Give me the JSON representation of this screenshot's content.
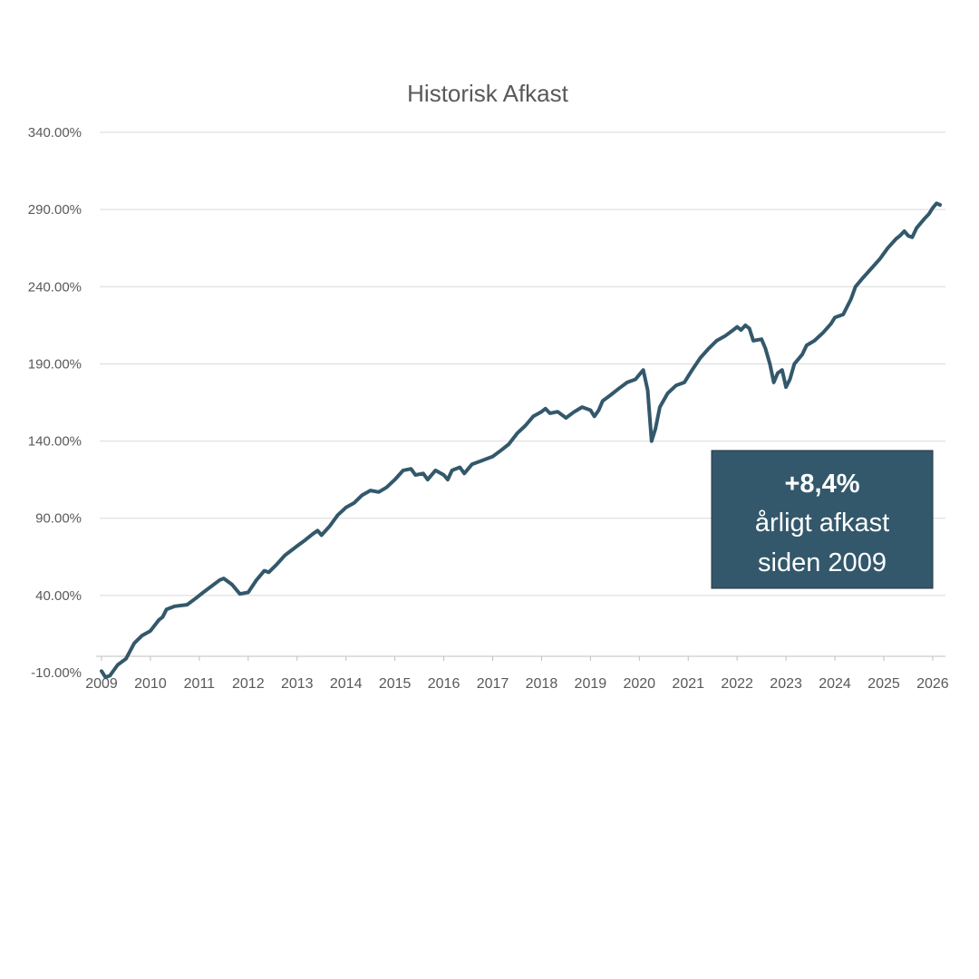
{
  "chart_data": {
    "type": "line",
    "title": "Historisk Afkast",
    "xlabel": "",
    "ylabel": "",
    "x_ticks": [
      "2009",
      "2010",
      "2011",
      "2012",
      "2013",
      "2014",
      "2015",
      "2016",
      "2017",
      "2018",
      "2019",
      "2020",
      "2021",
      "2022",
      "2023",
      "2024",
      "2025",
      "2026"
    ],
    "y_ticks": [
      "340.00%",
      "290.00%",
      "240.00%",
      "190.00%",
      "140.00%",
      "90.00%",
      "40.00%",
      "-10.00%"
    ],
    "y_tick_values": [
      340,
      290,
      240,
      190,
      140,
      90,
      40,
      -10
    ],
    "xlim": [
      2009.0,
      2026.15
    ],
    "ylim": [
      -10,
      340
    ],
    "grid": true,
    "series": [
      {
        "color": "#33586b",
        "points": [
          [
            2009.0,
            -9
          ],
          [
            2009.08,
            -13
          ],
          [
            2009.17,
            -12
          ],
          [
            2009.33,
            -5
          ],
          [
            2009.5,
            -1
          ],
          [
            2009.67,
            9
          ],
          [
            2009.83,
            14
          ],
          [
            2010.0,
            17
          ],
          [
            2010.17,
            24
          ],
          [
            2010.25,
            26
          ],
          [
            2010.33,
            31
          ],
          [
            2010.5,
            33
          ],
          [
            2010.75,
            34
          ],
          [
            2010.92,
            38
          ],
          [
            2011.08,
            42
          ],
          [
            2011.25,
            46
          ],
          [
            2011.42,
            50
          ],
          [
            2011.5,
            51
          ],
          [
            2011.67,
            47
          ],
          [
            2011.83,
            41
          ],
          [
            2012.0,
            42
          ],
          [
            2012.17,
            50
          ],
          [
            2012.33,
            56
          ],
          [
            2012.42,
            55
          ],
          [
            2012.58,
            60
          ],
          [
            2012.75,
            66
          ],
          [
            2013.0,
            72
          ],
          [
            2013.17,
            76
          ],
          [
            2013.33,
            80
          ],
          [
            2013.42,
            82
          ],
          [
            2013.5,
            79
          ],
          [
            2013.67,
            85
          ],
          [
            2013.83,
            92
          ],
          [
            2014.0,
            97
          ],
          [
            2014.17,
            100
          ],
          [
            2014.33,
            105
          ],
          [
            2014.5,
            108
          ],
          [
            2014.67,
            107
          ],
          [
            2014.83,
            110
          ],
          [
            2015.0,
            115
          ],
          [
            2015.17,
            121
          ],
          [
            2015.33,
            122
          ],
          [
            2015.42,
            118
          ],
          [
            2015.58,
            119
          ],
          [
            2015.67,
            115
          ],
          [
            2015.83,
            121
          ],
          [
            2016.0,
            118
          ],
          [
            2016.08,
            115
          ],
          [
            2016.17,
            121
          ],
          [
            2016.33,
            123
          ],
          [
            2016.42,
            119
          ],
          [
            2016.58,
            125
          ],
          [
            2016.75,
            127
          ],
          [
            2017.0,
            130
          ],
          [
            2017.17,
            134
          ],
          [
            2017.33,
            138
          ],
          [
            2017.5,
            145
          ],
          [
            2017.67,
            150
          ],
          [
            2017.83,
            156
          ],
          [
            2018.0,
            159
          ],
          [
            2018.08,
            161
          ],
          [
            2018.17,
            158
          ],
          [
            2018.33,
            159
          ],
          [
            2018.5,
            155
          ],
          [
            2018.67,
            159
          ],
          [
            2018.83,
            162
          ],
          [
            2019.0,
            160
          ],
          [
            2019.08,
            156
          ],
          [
            2019.17,
            160
          ],
          [
            2019.25,
            166
          ],
          [
            2019.42,
            170
          ],
          [
            2019.58,
            174
          ],
          [
            2019.75,
            178
          ],
          [
            2019.92,
            180
          ],
          [
            2020.0,
            183
          ],
          [
            2020.08,
            186
          ],
          [
            2020.17,
            173
          ],
          [
            2020.25,
            140
          ],
          [
            2020.33,
            148
          ],
          [
            2020.42,
            162
          ],
          [
            2020.58,
            171
          ],
          [
            2020.75,
            176
          ],
          [
            2020.92,
            178
          ],
          [
            2021.08,
            186
          ],
          [
            2021.25,
            194
          ],
          [
            2021.42,
            200
          ],
          [
            2021.58,
            205
          ],
          [
            2021.75,
            208
          ],
          [
            2021.92,
            212
          ],
          [
            2022.0,
            214
          ],
          [
            2022.08,
            212
          ],
          [
            2022.17,
            215
          ],
          [
            2022.25,
            213
          ],
          [
            2022.33,
            205
          ],
          [
            2022.5,
            206
          ],
          [
            2022.58,
            200
          ],
          [
            2022.67,
            190
          ],
          [
            2022.75,
            178
          ],
          [
            2022.83,
            184
          ],
          [
            2022.92,
            186
          ],
          [
            2023.0,
            175
          ],
          [
            2023.08,
            180
          ],
          [
            2023.17,
            190
          ],
          [
            2023.33,
            196
          ],
          [
            2023.42,
            202
          ],
          [
            2023.58,
            205
          ],
          [
            2023.75,
            210
          ],
          [
            2023.92,
            216
          ],
          [
            2024.0,
            220
          ],
          [
            2024.17,
            222
          ],
          [
            2024.33,
            232
          ],
          [
            2024.42,
            240
          ],
          [
            2024.58,
            246
          ],
          [
            2024.75,
            252
          ],
          [
            2024.92,
            258
          ],
          [
            2025.08,
            265
          ],
          [
            2025.25,
            271
          ],
          [
            2025.33,
            273
          ],
          [
            2025.42,
            276
          ],
          [
            2025.5,
            273
          ],
          [
            2025.58,
            272
          ],
          [
            2025.67,
            278
          ],
          [
            2025.83,
            284
          ],
          [
            2025.92,
            287
          ],
          [
            2026.0,
            291
          ],
          [
            2026.08,
            294
          ],
          [
            2026.15,
            293
          ]
        ]
      }
    ],
    "annotation": {
      "line1": "+8,4%",
      "line2": "årligt afkast",
      "line3": "siden 2009",
      "box_color": "#33586b",
      "text_color": "#ffffff"
    }
  }
}
